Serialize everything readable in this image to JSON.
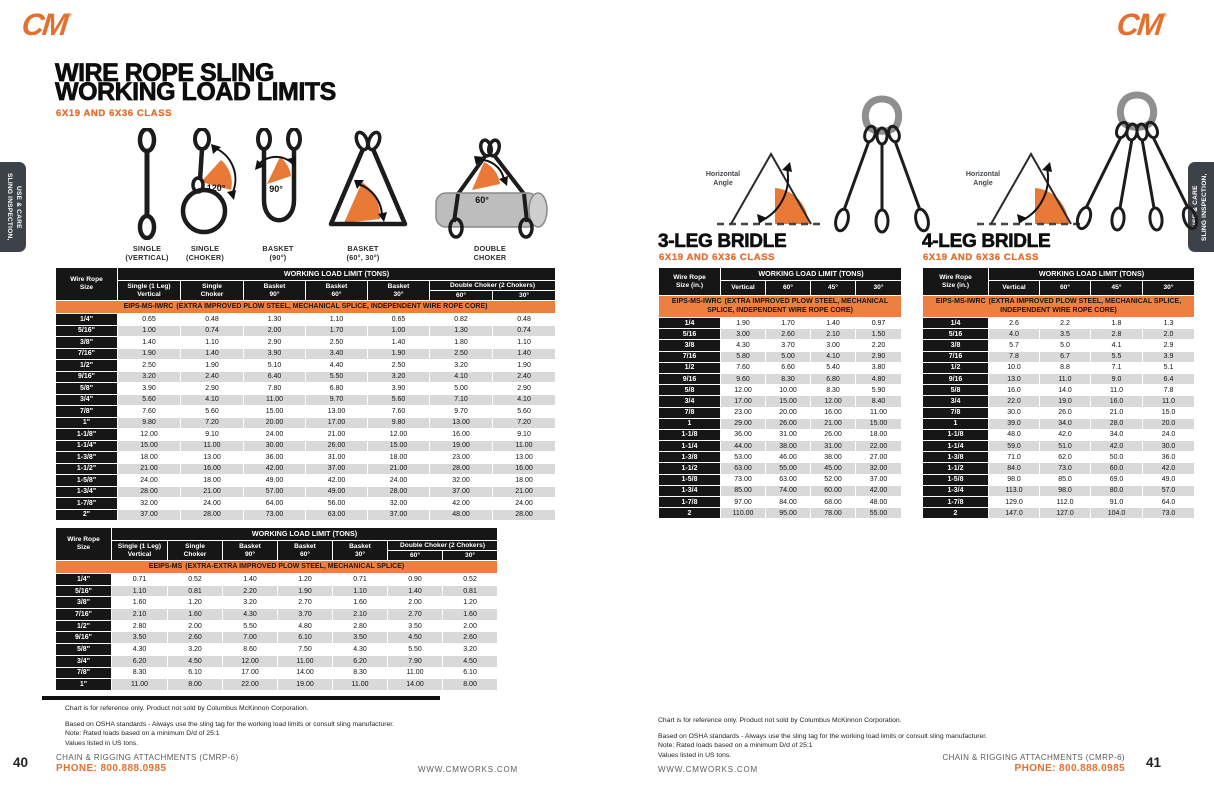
{
  "brand": {
    "logo_text": "CM",
    "reg_mark": "®",
    "orange": "#E4702F"
  },
  "sidebar_tab": {
    "label": "SLING INSPECTION,\nUSE & CARE"
  },
  "notes": [
    "Chart is for reference only. Product not sold by Columbus McKinnon Corporation.",
    "Based on OSHA standards - Always use the sling tag for the working load limits or consult sling manufacturer.",
    "Note: Rated loads based on a minimum D/d of 25:1",
    "Values listed in US tons."
  ],
  "footer": {
    "catalog": "CHAIN & RIGGING ATTACHMENTS (CMRP-6)",
    "phone": "PHONE: 800.888.0985",
    "website": "WWW.CMWORKS.COM"
  },
  "page_left": {
    "page_number": "40",
    "title_line1": "WIRE ROPE SLING",
    "title_line2": "WORKING LOAD LIMITS",
    "subtitle": "6X19 AND 6X36 CLASS",
    "diagrams": {
      "single_vertical_label": "SINGLE\n(VERTICAL)",
      "single_choker_label": "SINGLE\n(CHOKER)",
      "basket_90_label": "BASKET\n(90°)",
      "basket_60_30_label": "BASKET\n(60°, 30°)",
      "double_choker_label": "DOUBLE\nCHOKER",
      "choker_angle": "120°",
      "basket_angle": "90°",
      "double_choker_angle": "60°"
    },
    "table1": {
      "col0": "Wire Rope\nSize",
      "group_header": "WORKING LOAD LIMIT (TONS)",
      "columns": [
        "Single (1 Leg)\nVertical",
        "Single\nChoker",
        "Basket\n90°",
        "Basket\n60°",
        "Basket\n30°"
      ],
      "dc_header": "Double Choker (2 Chokers)",
      "dc_sub": [
        "60°",
        "30°"
      ],
      "band_code": "EIPS-MS-IWRC",
      "band_desc": "(EXTRA IMPROVED PLOW STEEL, MECHANICAL SPLICE, INDEPENDENT WIRE ROPE CORE)",
      "rows": [
        [
          "1/4\"",
          "0.65",
          "0.48",
          "1.30",
          "1.10",
          "0.65",
          "0.82",
          "0.48"
        ],
        [
          "5/16\"",
          "1.00",
          "0.74",
          "2.00",
          "1.70",
          "1.00",
          "1.30",
          "0.74"
        ],
        [
          "3/8\"",
          "1.40",
          "1.10",
          "2.90",
          "2.50",
          "1.40",
          "1.80",
          "1.10"
        ],
        [
          "7/16\"",
          "1.90",
          "1.40",
          "3.90",
          "3.40",
          "1.90",
          "2.50",
          "1.40"
        ],
        [
          "1/2\"",
          "2.50",
          "1.90",
          "5.10",
          "4.40",
          "2.50",
          "3.20",
          "1.90"
        ],
        [
          "9/16\"",
          "3.20",
          "2.40",
          "6.40",
          "5.50",
          "3.20",
          "4.10",
          "2.40"
        ],
        [
          "5/8\"",
          "3.90",
          "2.90",
          "7.80",
          "6.80",
          "3.90",
          "5.00",
          "2.90"
        ],
        [
          "3/4\"",
          "5.60",
          "4.10",
          "11.00",
          "9.70",
          "5.60",
          "7.10",
          "4.10"
        ],
        [
          "7/8\"",
          "7.60",
          "5.60",
          "15.00",
          "13.00",
          "7.60",
          "9.70",
          "5.60"
        ],
        [
          "1\"",
          "9.80",
          "7.20",
          "20.00",
          "17.00",
          "9.80",
          "13.00",
          "7.20"
        ],
        [
          "1-1/8\"",
          "12.00",
          "9.10",
          "24.00",
          "21.00",
          "12.00",
          "16.00",
          "9.10"
        ],
        [
          "1-1/4\"",
          "15.00",
          "11.00",
          "30.00",
          "26.00",
          "15.00",
          "19.00",
          "11.00"
        ],
        [
          "1-3/8\"",
          "18.00",
          "13.00",
          "36.00",
          "31.00",
          "18.00",
          "23.00",
          "13.00"
        ],
        [
          "1-1/2\"",
          "21.00",
          "16.00",
          "42.00",
          "37.00",
          "21.00",
          "28.00",
          "16.00"
        ],
        [
          "1-5/8\"",
          "24.00",
          "18.00",
          "49.00",
          "42.00",
          "24.00",
          "32.00",
          "18.00"
        ],
        [
          "1-3/4\"",
          "28.00",
          "21.00",
          "57.00",
          "49.00",
          "28.00",
          "37.00",
          "21.00"
        ],
        [
          "1-7/8\"",
          "32.00",
          "24.00",
          "64.00",
          "56.00",
          "32.00",
          "42.00",
          "24.00"
        ],
        [
          "2\"",
          "37.00",
          "28.00",
          "73.00",
          "63.00",
          "37.00",
          "48.00",
          "28.00"
        ]
      ]
    },
    "table2": {
      "col0": "Wire Rope\nSize",
      "group_header": "WORKING LOAD LIMIT (TONS)",
      "columns": [
        "Single (1 Leg)\nVertical",
        "Single\nChoker",
        "Basket\n90°",
        "Basket\n60°",
        "Basket\n30°"
      ],
      "dc_header": "Double Choker (2 Chokers)",
      "dc_sub": [
        "60°",
        "30°"
      ],
      "band_code": "EEIPS-MS",
      "band_desc": "(EXTRA-EXTRA IMPROVED PLOW STEEL, MECHANICAL SPLICE)",
      "rows": [
        [
          "1/4\"",
          "0.71",
          "0.52",
          "1.40",
          "1.20",
          "0.71",
          "0.90",
          "0.52"
        ],
        [
          "5/16\"",
          "1.10",
          "0.81",
          "2.20",
          "1.90",
          "1.10",
          "1.40",
          "0.81"
        ],
        [
          "3/8\"",
          "1.60",
          "1.20",
          "3.20",
          "2.70",
          "1.60",
          "2.00",
          "1.20"
        ],
        [
          "7/16\"",
          "2.10",
          "1.60",
          "4.30",
          "3.70",
          "2.10",
          "2.70",
          "1.60"
        ],
        [
          "1/2\"",
          "2.80",
          "2.00",
          "5.50",
          "4.80",
          "2.80",
          "3.50",
          "2.00"
        ],
        [
          "9/16\"",
          "3.50",
          "2.60",
          "7.00",
          "6.10",
          "3.50",
          "4.50",
          "2.60"
        ],
        [
          "5/8\"",
          "4.30",
          "3.20",
          "8.60",
          "7.50",
          "4.30",
          "5.50",
          "3.20"
        ],
        [
          "3/4\"",
          "6.20",
          "4.50",
          "12.00",
          "11.00",
          "6.20",
          "7.90",
          "4.50"
        ],
        [
          "7/8\"",
          "8.30",
          "6.10",
          "17.00",
          "14.00",
          "8.30",
          "11.00",
          "6.10"
        ],
        [
          "1\"",
          "11.00",
          "8.00",
          "22.00",
          "19.00",
          "11.00",
          "14.00",
          "8.00"
        ]
      ]
    }
  },
  "page_right": {
    "page_number": "41",
    "horizontal_angle_label": "Horizontal\nAngle",
    "bridle3": {
      "title": "3-LEG BRIDLE",
      "subtitle": "6X19 AND 6X36 CLASS",
      "table": {
        "col0": "Wire Rope\nSize (in.)",
        "group_header": "WORKING LOAD LIMIT (TONS)",
        "columns": [
          "Vertical",
          "60°",
          "45°",
          "30°"
        ],
        "band_code": "EIPS-MS-IWRC",
        "band_desc": "(EXTRA IMPROVED PLOW STEEL, MECHANICAL SPLICE, INDEPENDENT WIRE ROPE CORE)",
        "rows": [
          [
            "1/4",
            "1.90",
            "1.70",
            "1.40",
            "0.97"
          ],
          [
            "5/16",
            "3.00",
            "2.60",
            "2.10",
            "1.50"
          ],
          [
            "3/8",
            "4.30",
            "3.70",
            "3.00",
            "2.20"
          ],
          [
            "7/16",
            "5.80",
            "5.00",
            "4.10",
            "2.90"
          ],
          [
            "1/2",
            "7.60",
            "6.60",
            "5.40",
            "3.80"
          ],
          [
            "9/16",
            "9.60",
            "8.30",
            "6.80",
            "4.80"
          ],
          [
            "5/8",
            "12.00",
            "10.00",
            "8.30",
            "5.90"
          ],
          [
            "3/4",
            "17.00",
            "15.00",
            "12.00",
            "8.40"
          ],
          [
            "7/8",
            "23.00",
            "20.00",
            "16.00",
            "11.00"
          ],
          [
            "1",
            "29.00",
            "26.00",
            "21.00",
            "15.00"
          ],
          [
            "1-1/8",
            "36.00",
            "31.00",
            "26.00",
            "18.00"
          ],
          [
            "1-1/4",
            "44.00",
            "38.00",
            "31.00",
            "22.00"
          ],
          [
            "1-3/8",
            "53.00",
            "46.00",
            "38.00",
            "27.00"
          ],
          [
            "1-1/2",
            "63.00",
            "55.00",
            "45.00",
            "32.00"
          ],
          [
            "1-5/8",
            "73.00",
            "63.00",
            "52.00",
            "37.00"
          ],
          [
            "1-3/4",
            "85.00",
            "74.00",
            "60.00",
            "42.00"
          ],
          [
            "1-7/8",
            "97.00",
            "84.00",
            "68.00",
            "48.00"
          ],
          [
            "2",
            "110.00",
            "95.00",
            "78.00",
            "55.00"
          ]
        ]
      }
    },
    "bridle4": {
      "title": "4-LEG BRIDLE",
      "subtitle": "6X19 AND 6X36 CLASS",
      "table": {
        "col0": "Wire Rope\nSize (in.)",
        "group_header": "WORKING LOAD LIMIT (TONS)",
        "columns": [
          "Vertical",
          "60°",
          "45°",
          "30°"
        ],
        "band_code": "EIPS-MS-IWRC",
        "band_desc": "(EXTRA IMPROVED PLOW STEEL, MECHANICAL SPLICE, INDEPENDENT WIRE ROPE CORE)",
        "rows": [
          [
            "1/4",
            "2.6",
            "2.2",
            "1.8",
            "1.3"
          ],
          [
            "5/16",
            "4.0",
            "3.5",
            "2.8",
            "2.0"
          ],
          [
            "3/8",
            "5.7",
            "5.0",
            "4.1",
            "2.9"
          ],
          [
            "7/16",
            "7.8",
            "6.7",
            "5.5",
            "3.9"
          ],
          [
            "1/2",
            "10.0",
            "8.8",
            "7.1",
            "5.1"
          ],
          [
            "9/16",
            "13.0",
            "11.0",
            "9.0",
            "6.4"
          ],
          [
            "5/8",
            "16.0",
            "14.0",
            "11.0",
            "7.8"
          ],
          [
            "3/4",
            "22.0",
            "19.0",
            "16.0",
            "11.0"
          ],
          [
            "7/8",
            "30.0",
            "26.0",
            "21.0",
            "15.0"
          ],
          [
            "1",
            "39.0",
            "34.0",
            "28.0",
            "20.0"
          ],
          [
            "1-1/8",
            "48.0",
            "42.0",
            "34.0",
            "24.0"
          ],
          [
            "1-1/4",
            "59.0",
            "51.0",
            "42.0",
            "30.0"
          ],
          [
            "1-3/8",
            "71.0",
            "62.0",
            "50.0",
            "36.0"
          ],
          [
            "1-1/2",
            "84.0",
            "73.0",
            "60.0",
            "42.0"
          ],
          [
            "1-5/8",
            "98.0",
            "85.0",
            "69.0",
            "49.0"
          ],
          [
            "1-3/4",
            "113.0",
            "98.0",
            "80.0",
            "57.0"
          ],
          [
            "1-7/8",
            "129.0",
            "112.0",
            "91.0",
            "64.0"
          ],
          [
            "2",
            "147.0",
            "127.0",
            "104.0",
            "73.0"
          ]
        ]
      }
    }
  }
}
